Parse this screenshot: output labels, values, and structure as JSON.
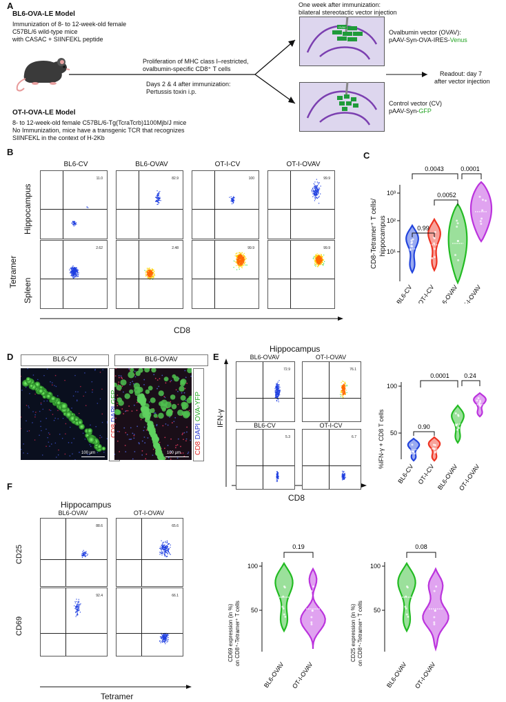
{
  "panels": {
    "A": "A",
    "B": "B",
    "C": "C",
    "D": "D",
    "E": "E",
    "F": "F"
  },
  "panel_a": {
    "bl6_title": "BL6-OVA-LE Model",
    "bl6_line1": "Immunization of 8- to 12-week-old female",
    "bl6_line2": "C57BL/6 wild-type mice",
    "bl6_line3": "with CASAC + SIINFEKL peptide",
    "proliferation_line1": "Proliferation of MHC class I–restricted,",
    "proliferation_line2": "ovalbumin-specific CD8⁺ T cells",
    "days_line1": "Days 2 & 4 after immunization:",
    "days_line2": "Pertussis toxin i.p.",
    "oti_title": "OT-I-OVA-LE Model",
    "oti_line1": "8- to 12-week-old female C57BL/6-Tg(TcraTcrb)1100Mjb/J mice",
    "oti_line2": "No Immunization, mice have a transgenic TCR that recognizes",
    "oti_line3": "SIINFEKL in the context of H-2Kb",
    "week_line1": "One week after immunization:",
    "week_line2": "bilateral stereotactic vector injection",
    "ovav_line1": "Ovalbumin vector (OVAV):",
    "ovav_line2_pre": "pAAV-Syn-OVA-IRES-",
    "ovav_line2_col": "Venus",
    "cv_line1": "Control vector (CV)",
    "cv_line2_pre": "pAAV-Syn-",
    "cv_line2_col": "GFP",
    "readout_line1": "Readout: day 7",
    "readout_line2": "after vector injection",
    "ova_blob_label": "OVAV"
  },
  "panel_b": {
    "groups": [
      "BL6-CV",
      "BL6-OVAV",
      "OT-I-CV",
      "OT-I-OVAV"
    ],
    "row_labels": [
      "Hippocampus",
      "Spleen"
    ],
    "y_label": "Tetramer",
    "x_label": "CD8",
    "hip_pct": [
      "11.0",
      "82.9",
      "100",
      "99.9"
    ],
    "spl_pct": [
      "2.62",
      "2.48",
      "99.9",
      "99.9"
    ]
  },
  "panel_c": {
    "ylabel_line1": "CD8-Tetramer⁺ T cells/",
    "ylabel_line2": "hippocampus",
    "tick_labels": [
      "10¹",
      "10²",
      "10³"
    ],
    "pvals": [
      "0.0043",
      "0.0001",
      "0.0052",
      "0.99"
    ]
  },
  "panel_d": {
    "left_label": "BL6-CV",
    "right_label": "BL6-OVAV",
    "legend_left": [
      "CD8",
      "DAPI",
      "GFP"
    ],
    "legend_right": [
      "CD8",
      "DAPI",
      "OVA-YFP"
    ],
    "scale": "100 µm"
  },
  "panel_e": {
    "title": "Hippocampus",
    "plots": [
      "BL6-OVAV",
      "OT-I-OVAV",
      "BL6-CV",
      "OT-I-CV"
    ],
    "pct": [
      "72.9",
      "76.1",
      "5.3",
      "6.7"
    ],
    "y_label": "IFN-γ",
    "x_label": "CD8",
    "violin_ylabel": "%IFN-γ + CD8 T cells",
    "tick_labels": [
      "100",
      "50"
    ],
    "pvals": [
      "0.0001",
      "0.24",
      "0.90"
    ]
  },
  "panel_f": {
    "title": "Hippocampus",
    "plots": [
      "BL6-OVAV",
      "OT-I-OVAV"
    ],
    "row_labels": [
      "CD25",
      "CD69"
    ],
    "pct": [
      "88.6",
      "65.6",
      "92.4",
      "66.1"
    ],
    "x_label": "Tetramer",
    "v1_ylabel_line1": "CD69 expression (in %)",
    "v1_ylabel_line2": "on CD8⁺-Tetramer⁺ T cells",
    "v2_ylabel_line1": "CD25 expression (in %)",
    "v2_ylabel_line2": "on CD8⁺-Tetramer⁺ T cells",
    "tick_labels": [
      "100",
      "50"
    ],
    "pvals": [
      "0.19",
      "0.08"
    ]
  },
  "violin_categories": {
    "c": [
      "BL6-CV",
      "OT-I-CV",
      "BL6-OVAV",
      "OT-I-OVAV"
    ],
    "e": [
      "BL6-CV",
      "OT-I-CV",
      "BL6-OVAV",
      "OT-I-OVAV"
    ],
    "f": [
      "BL6-OVAV",
      "OT-I-OVAV"
    ]
  },
  "colors": {
    "blue": "#2244dd",
    "red": "#ee3322",
    "green": "#22bb22",
    "purple": "#bb33dd",
    "gfp": "#3fbf3f"
  }
}
